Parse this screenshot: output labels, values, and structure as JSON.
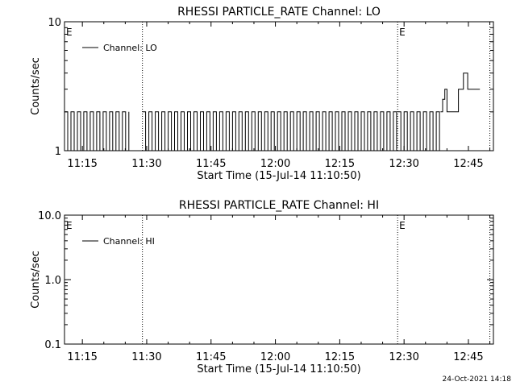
{
  "footer": {
    "timestamp": "24-Oct-2021 14:18"
  },
  "chart_data": [
    {
      "type": "line",
      "title": "RHESSI PARTICLE_RATE Channel: LO",
      "xlabel": "Start Time (15-Jul-14 11:10:50)",
      "ylabel": "Counts/sec",
      "x_range": [
        "11:10:50",
        "12:50:50"
      ],
      "x_ticks": [
        "11:15",
        "11:30",
        "11:45",
        "12:00",
        "12:15",
        "12:30",
        "12:45"
      ],
      "ylim": [
        1,
        10
      ],
      "yscale": "log",
      "y_ticks": [
        "1",
        "10"
      ],
      "grid": false,
      "legend": {
        "placement": "top-left",
        "entries": [
          "Channel: LO"
        ]
      },
      "eclipse_markers": [
        {
          "label": "E",
          "time": "11:10:50"
        },
        {
          "label": "",
          "time": "11:29:00"
        },
        {
          "label": "E",
          "time": "12:28:30"
        },
        {
          "label": "",
          "time": "12:50:00"
        }
      ],
      "series": [
        {
          "name": "Channel: LO",
          "segments": [
            {
              "start": "11:10:50",
              "end": "11:26:00",
              "pattern": "toggle",
              "values": [
                1,
                2
              ]
            },
            {
              "start": "11:29:00",
              "end": "12:28:30",
              "pattern": "toggle",
              "values": [
                1,
                2
              ]
            },
            {
              "start": "12:28:30",
              "end": "12:38:30",
              "pattern": "toggle",
              "values": [
                1,
                2
              ]
            },
            {
              "start": "12:38:30",
              "end": "12:47:40",
              "pattern": "steps",
              "x": [
                "12:38:30",
                "12:39:00",
                "12:39:30",
                "12:40:00",
                "12:40:30",
                "12:41:30",
                "12:42:40",
                "12:43:20",
                "12:43:50",
                "12:44:20",
                "12:44:50",
                "12:45:20",
                "12:47:40"
              ],
              "y": [
                2,
                2.5,
                3,
                2,
                2,
                2,
                3,
                3,
                4,
                4,
                3,
                3,
                3
              ]
            }
          ]
        }
      ]
    },
    {
      "type": "line",
      "title": "RHESSI PARTICLE_RATE Channel: HI",
      "xlabel": "Start Time (15-Jul-14 11:10:50)",
      "ylabel": "Counts/sec",
      "x_range": [
        "11:10:50",
        "12:50:50"
      ],
      "x_ticks": [
        "11:15",
        "11:30",
        "11:45",
        "12:00",
        "12:15",
        "12:30",
        "12:45"
      ],
      "ylim": [
        0.1,
        10
      ],
      "yscale": "log",
      "y_ticks": [
        "0.1",
        "1.0",
        "10.0"
      ],
      "grid": false,
      "legend": {
        "placement": "top-left",
        "entries": [
          "Channel: HI"
        ]
      },
      "eclipse_markers": [
        {
          "label": "E",
          "time": "11:10:50"
        },
        {
          "label": "",
          "time": "11:29:00"
        },
        {
          "label": "E",
          "time": "12:28:30"
        },
        {
          "label": "",
          "time": "12:50:00"
        }
      ],
      "series": [
        {
          "name": "Channel: HI",
          "segments": []
        }
      ]
    }
  ]
}
